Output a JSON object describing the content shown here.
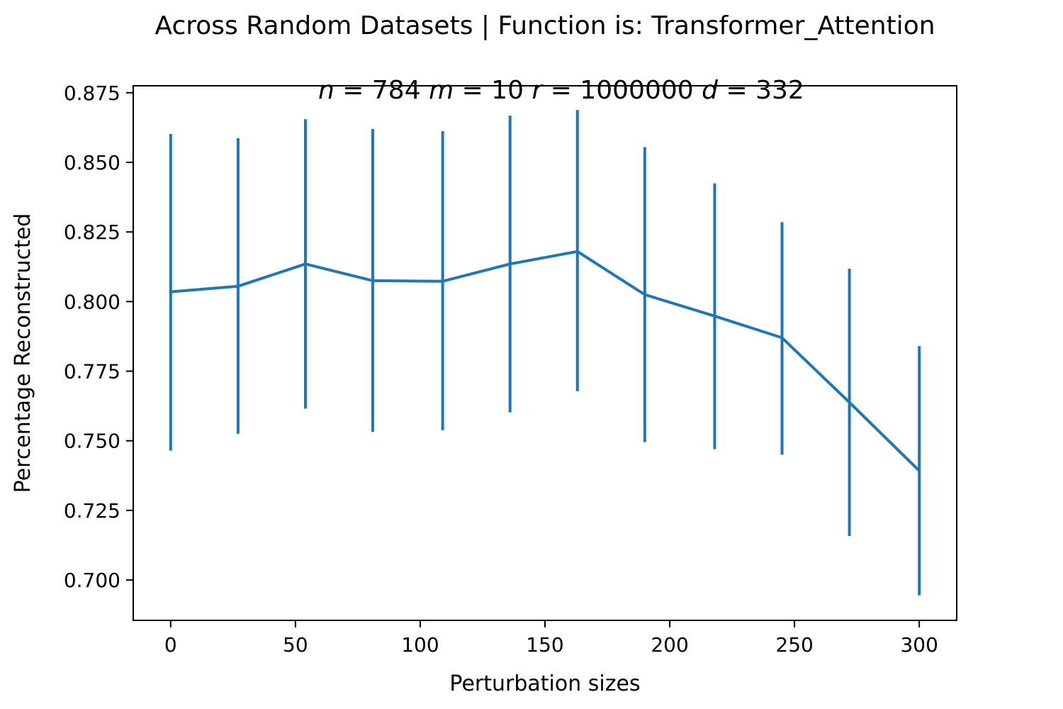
{
  "chart_data": {
    "type": "line",
    "title": "Across Random Datasets | Function is: Transformer_Attention",
    "subtitle": {
      "parts": [
        {
          "var": "n",
          "value": "784"
        },
        {
          "var": "m",
          "value": "10"
        },
        {
          "var": "r",
          "value": "1000000"
        },
        {
          "var": "d",
          "value": "332"
        }
      ]
    },
    "xlabel": "Perturbation sizes",
    "ylabel": "Percentage Reconstructed",
    "xlim": [
      -15,
      315
    ],
    "ylim": [
      0.6855,
      0.8775
    ],
    "xticks": [
      0,
      50,
      100,
      150,
      200,
      250,
      300
    ],
    "xtick_labels": [
      "0",
      "50",
      "100",
      "150",
      "200",
      "250",
      "300"
    ],
    "yticks": [
      0.7,
      0.725,
      0.75,
      0.775,
      0.8,
      0.825,
      0.85,
      0.875
    ],
    "ytick_labels": [
      "0.700",
      "0.725",
      "0.750",
      "0.775",
      "0.800",
      "0.825",
      "0.850",
      "0.875"
    ],
    "grid": false,
    "series": [
      {
        "color": "#1f77b4",
        "x": [
          0,
          27,
          54,
          81,
          109,
          136,
          163,
          190,
          218,
          245,
          272,
          300
        ],
        "y": [
          0.8035,
          0.8055,
          0.8135,
          0.8075,
          0.8073,
          0.8135,
          0.818,
          0.8025,
          0.7948,
          0.787,
          0.7638,
          0.7392
        ],
        "err_low": [
          0.7465,
          0.7525,
          0.7615,
          0.7532,
          0.7538,
          0.7602,
          0.7678,
          0.7495,
          0.747,
          0.745,
          0.7158,
          0.6945
        ],
        "err_high": [
          0.8602,
          0.8587,
          0.8655,
          0.862,
          0.8612,
          0.8668,
          0.8688,
          0.8555,
          0.8425,
          0.8285,
          0.8118,
          0.784
        ]
      }
    ]
  }
}
